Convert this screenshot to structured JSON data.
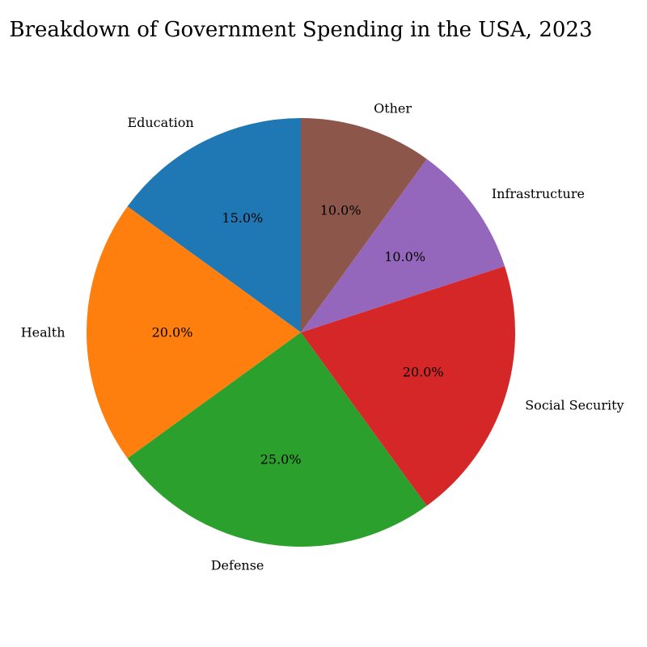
{
  "chart_data": {
    "type": "pie",
    "title": "Breakdown of Government Spending in the USA, 2023",
    "categories": [
      "Education",
      "Health",
      "Defense",
      "Social Security",
      "Infrastructure",
      "Other"
    ],
    "values": [
      15.0,
      20.0,
      25.0,
      20.0,
      10.0,
      10.0
    ],
    "value_labels": [
      "15.0%",
      "20.0%",
      "25.0%",
      "20.0%",
      "10.0%",
      "10.0%"
    ],
    "colors": [
      "#1f77b4",
      "#ff7f0e",
      "#2ca02c",
      "#d62728",
      "#9467bd",
      "#8c564b"
    ],
    "start_angle_deg": 90,
    "direction": "counterclockwise"
  }
}
